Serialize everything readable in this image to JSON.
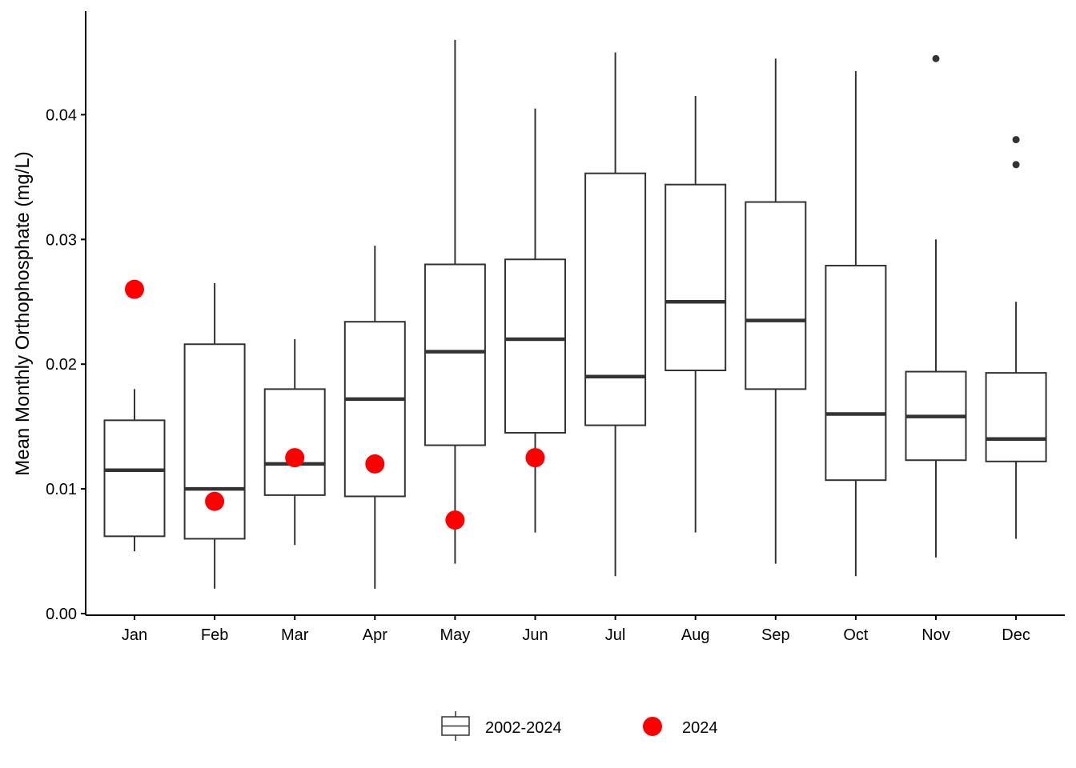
{
  "chart_data": {
    "type": "box",
    "title": "",
    "xlabel": "",
    "ylabel": "Mean Monthly Orthophosphate (mg/L)",
    "ylim": [
      0,
      0.0465
    ],
    "yticks": [
      0.0,
      0.01,
      0.02,
      0.03,
      0.04
    ],
    "ytick_labels": [
      "0.00",
      "0.01",
      "0.02",
      "0.03",
      "0.04"
    ],
    "categories": [
      "Jan",
      "Feb",
      "Mar",
      "Apr",
      "May",
      "Jun",
      "Jul",
      "Aug",
      "Sep",
      "Oct",
      "Nov",
      "Dec"
    ],
    "grid": false,
    "legend_position": "bottom",
    "series": [
      {
        "name": "2002-2024",
        "kind": "boxplot",
        "boxes": [
          {
            "min": 0.005,
            "q1": 0.0062,
            "median": 0.0115,
            "q3": 0.0155,
            "max": 0.018,
            "outliers": []
          },
          {
            "min": 0.002,
            "q1": 0.006,
            "median": 0.01,
            "q3": 0.0216,
            "max": 0.0265,
            "outliers": []
          },
          {
            "min": 0.0055,
            "q1": 0.0095,
            "median": 0.012,
            "q3": 0.018,
            "max": 0.022,
            "outliers": []
          },
          {
            "min": 0.002,
            "q1": 0.0094,
            "median": 0.0172,
            "q3": 0.0234,
            "max": 0.0295,
            "outliers": []
          },
          {
            "min": 0.004,
            "q1": 0.0135,
            "median": 0.021,
            "q3": 0.028,
            "max": 0.046,
            "outliers": []
          },
          {
            "min": 0.0065,
            "q1": 0.0145,
            "median": 0.022,
            "q3": 0.0284,
            "max": 0.0405,
            "outliers": []
          },
          {
            "min": 0.003,
            "q1": 0.0151,
            "median": 0.019,
            "q3": 0.0353,
            "max": 0.045,
            "outliers": []
          },
          {
            "min": 0.0065,
            "q1": 0.0195,
            "median": 0.025,
            "q3": 0.0344,
            "max": 0.0415,
            "outliers": []
          },
          {
            "min": 0.004,
            "q1": 0.018,
            "median": 0.0235,
            "q3": 0.033,
            "max": 0.0445,
            "outliers": []
          },
          {
            "min": 0.003,
            "q1": 0.0107,
            "median": 0.016,
            "q3": 0.0279,
            "max": 0.0435,
            "outliers": []
          },
          {
            "min": 0.0045,
            "q1": 0.0123,
            "median": 0.0158,
            "q3": 0.0194,
            "max": 0.03,
            "outliers": [
              0.0445
            ]
          },
          {
            "min": 0.006,
            "q1": 0.0122,
            "median": 0.014,
            "q3": 0.0193,
            "max": 0.025,
            "outliers": [
              0.038,
              0.036
            ]
          }
        ]
      },
      {
        "name": "2024",
        "kind": "points",
        "points": [
          {
            "category": "Jan",
            "value": 0.026
          },
          {
            "category": "Feb",
            "value": 0.009
          },
          {
            "category": "Mar",
            "value": 0.0125
          },
          {
            "category": "Apr",
            "value": 0.012
          },
          {
            "category": "May",
            "value": 0.0075
          },
          {
            "category": "Jun",
            "value": 0.0125
          }
        ]
      }
    ],
    "colors": {
      "box_stroke": "#333333",
      "median": "#333333",
      "points_2024": "#ff0000",
      "outlier": "#333333",
      "axis": "#000000"
    }
  }
}
